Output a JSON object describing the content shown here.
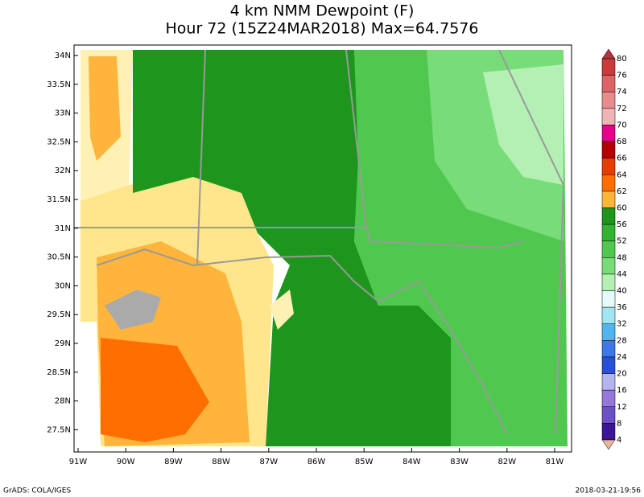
{
  "header": {
    "title": "4 km NMM Dewpoint (F)",
    "subtitle": "Hour 72 (15Z24MAR2018) Max=64.7576"
  },
  "map": {
    "lat_labels": [
      "34N",
      "33.5N",
      "33N",
      "32.5N",
      "32N",
      "31.5N",
      "31N",
      "30.5N",
      "30N",
      "29.5N",
      "29N",
      "28.5N",
      "28N",
      "27.5N"
    ],
    "lon_labels": [
      "91W",
      "90W",
      "89W",
      "88W",
      "87W",
      "86W",
      "85W",
      "84W",
      "83W",
      "82W",
      "81W"
    ]
  },
  "colorbar": {
    "labels": [
      80,
      76,
      74,
      72,
      70,
      68,
      66,
      64,
      62,
      60,
      56,
      52,
      48,
      44,
      40,
      36,
      32,
      28,
      24,
      20,
      16,
      12,
      8,
      4
    ],
    "colors": [
      "#b4323c",
      "#c83c3c",
      "#dc6464",
      "#e68c8c",
      "#f0b4b4",
      "#e6008c",
      "#b40000",
      "#e63c00",
      "#ff6e00",
      "#ffb43c",
      "#1e961e",
      "#32b432",
      "#50c850",
      "#78dc78",
      "#b4f0b4",
      "#e6fafa",
      "#a0e6f0",
      "#50b4f0",
      "#3c78e6",
      "#2850d2",
      "#b4b4f0",
      "#9678dc",
      "#6e50c8",
      "#3c1496",
      "#e6b49b"
    ]
  },
  "footer": {
    "left": "GrADS: COLA/IGES",
    "right": "2018-03-21-19:56"
  }
}
